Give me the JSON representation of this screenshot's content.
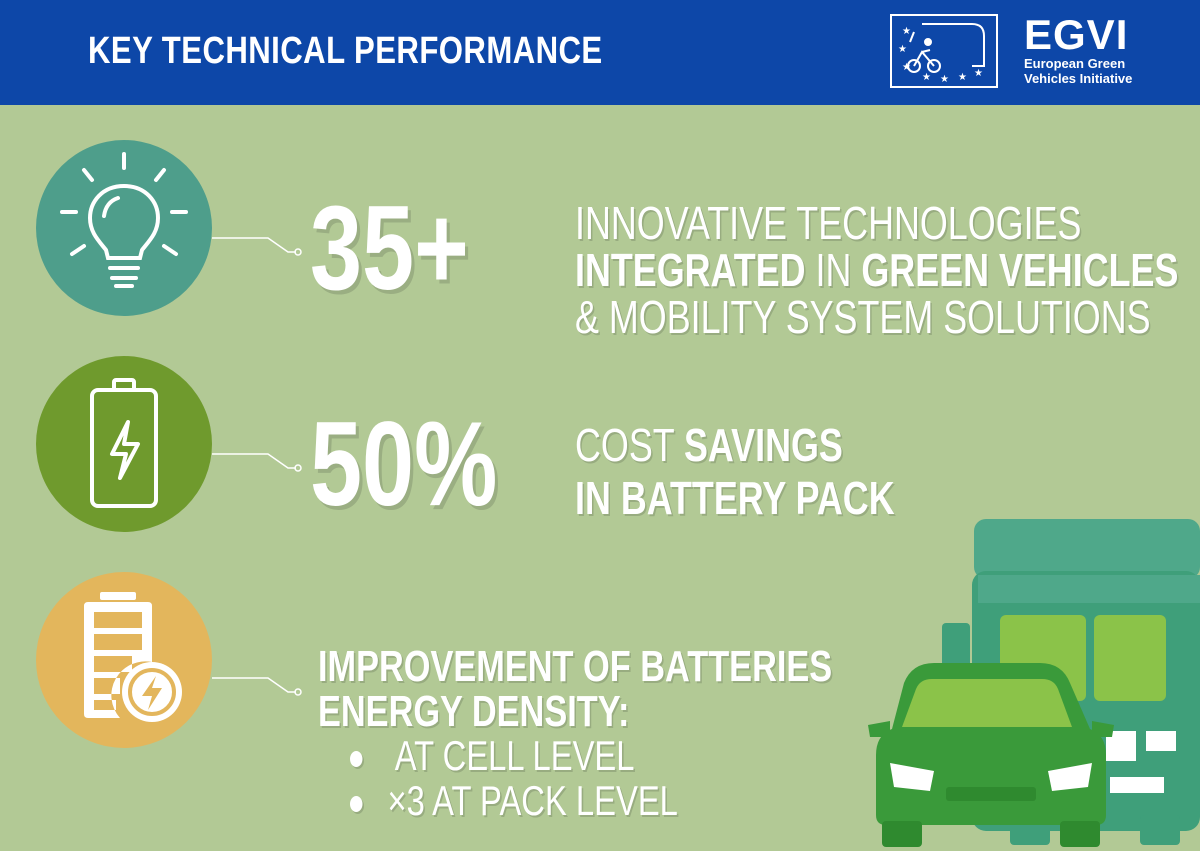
{
  "header": {
    "title": "KEY TECHNICAL PERFORMANCE",
    "background": "#0d47a8"
  },
  "logo": {
    "acronym": "EGVI",
    "name_line1": "European Green",
    "name_line2": "Vehicles Initiative"
  },
  "stats": [
    {
      "icon": "lightbulb-icon",
      "color": "#4e9e8b",
      "value": "35+",
      "line1": "INNOVATIVE TECHNOLOGIES",
      "line2_bold_a": "INTEGRATED",
      "line2_thin": " IN ",
      "line2_bold_b": "GREEN VEHICLES",
      "line3": "& MOBILITY SYSTEM SOLUTIONS"
    },
    {
      "icon": "battery-icon",
      "color": "#6f9a2d",
      "value": "50%",
      "line1_thin": "COST ",
      "line1_bold": "SAVINGS",
      "line2": "IN BATTERY PACK"
    },
    {
      "icon": "battery-charge-icon",
      "color": "#e3b65c",
      "line1": "IMPROVEMENT OF BATTERIES",
      "line2": "ENERGY DENSITY:",
      "bullets": [
        {
          "text": " AT CELL LEVEL"
        },
        {
          "text": "×3 AT PACK LEVEL"
        }
      ]
    }
  ],
  "illustration": "vehicles-icon"
}
